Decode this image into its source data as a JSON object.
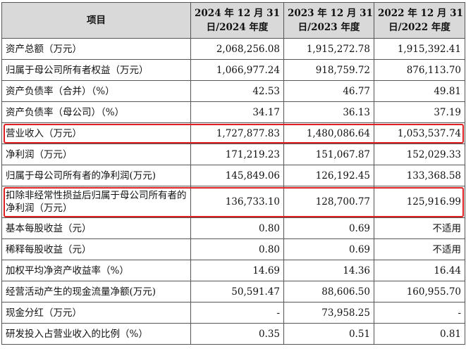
{
  "table": {
    "headers": [
      {
        "line1": "项目",
        "line2": ""
      },
      {
        "line1": "2024 年 12 月 31",
        "line2": "日/2024 年度"
      },
      {
        "line1": "2023 年 12 月 31",
        "line2": "日/2023 年度"
      },
      {
        "line1": "2022 年 12 月 31",
        "line2": "日/2022 年度"
      }
    ],
    "rows": [
      {
        "label": "资产总额（万元）",
        "v2024": "2,068,256.08",
        "v2023": "1,915,272.78",
        "v2022": "1,915,392.41",
        "highlighted": false
      },
      {
        "label": "归属于母公司所有者权益（万元）",
        "v2024": "1,066,977.24",
        "v2023": "918,759.72",
        "v2022": "876,113.70",
        "highlighted": false
      },
      {
        "label": "资产负债率（合并）（%）",
        "v2024": "42.53",
        "v2023": "46.77",
        "v2022": "49.81",
        "highlighted": false
      },
      {
        "label": "资产负债率（母公司）（%）",
        "v2024": "34.17",
        "v2023": "36.13",
        "v2022": "37.19",
        "highlighted": false
      },
      {
        "label": "营业收入（万元）",
        "v2024": "1,727,877.83",
        "v2023": "1,480,086.64",
        "v2022": "1,053,537.74",
        "highlighted": true
      },
      {
        "label": "净利润（万元）",
        "v2024": "171,219.23",
        "v2023": "151,067.87",
        "v2022": "152,029.33",
        "highlighted": false
      },
      {
        "label": "归属于母公司所有者的净利润(万元)",
        "v2024": "145,849.06",
        "v2023": "126,192.45",
        "v2022": "133,368.58",
        "highlighted": false
      },
      {
        "label": "扣除非经常性损益后归属于母公司所有者的净利润（万元）",
        "v2024": "136,733.10",
        "v2023": "128,700.77",
        "v2022": "125,916.99",
        "highlighted": true
      },
      {
        "label": "基本每股收益（元）",
        "v2024": "0.80",
        "v2023": "0.69",
        "v2022": "不适用",
        "highlighted": false
      },
      {
        "label": "稀释每股收益（元）",
        "v2024": "0.80",
        "v2023": "0.69",
        "v2022": "不适用",
        "highlighted": false
      },
      {
        "label": "加权平均净资产收益率（%）",
        "v2024": "14.69",
        "v2023": "14.36",
        "v2022": "16.44",
        "highlighted": false
      },
      {
        "label": "经营活动产生的现金流量净额(万元)",
        "v2024": "50,591.47",
        "v2023": "88,606.50",
        "v2022": "160,955.70",
        "highlighted": false
      },
      {
        "label": "现金分红（万元）",
        "v2024": "-",
        "v2023": "73,958.25",
        "v2022": "-",
        "highlighted": false
      },
      {
        "label": "研发投入占营业收入的比例（%）",
        "v2024": "0.35",
        "v2023": "0.51",
        "v2022": "0.81",
        "highlighted": false
      }
    ]
  },
  "colors": {
    "header_bg": "#d9d9d9",
    "highlight_border": "#e02020",
    "grid_line": "#555555"
  }
}
